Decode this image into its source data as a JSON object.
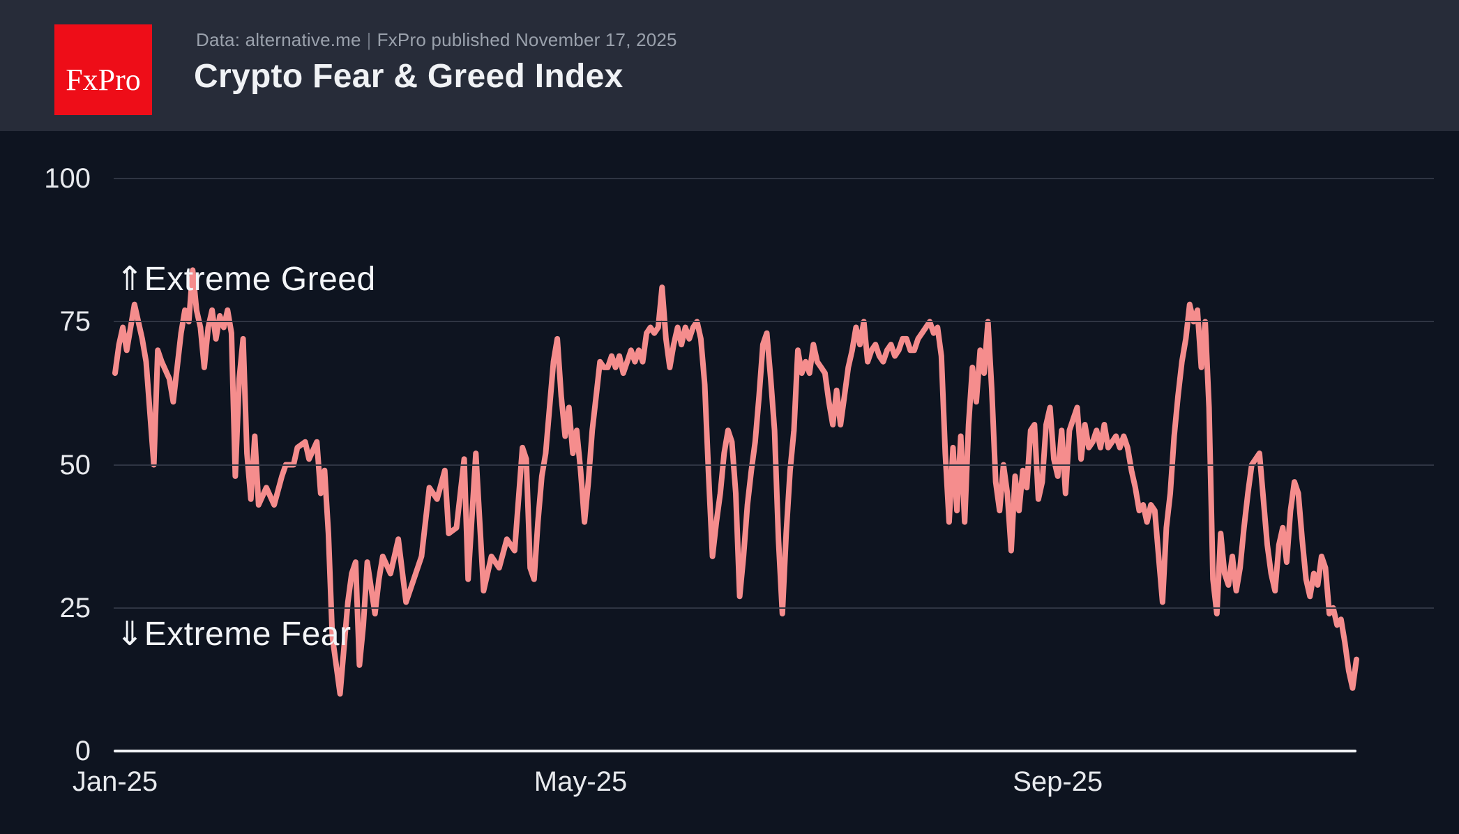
{
  "header": {
    "logo_text": "FxPro",
    "logo_color": "#ee0d18",
    "source_text": "Data: alternative.me",
    "separator": "|",
    "published_text": "FxPro published November 17, 2025",
    "title": "Crypto Fear & Greed Index"
  },
  "chart_data": {
    "type": "line",
    "title": "Crypto Fear & Greed Index",
    "source": "alternative.me",
    "published": "November 17, 2025",
    "legend_position": "none",
    "grid": true,
    "line_color": "#f58d8d",
    "background_color": "#0e1420",
    "y_axis": {
      "ticks": [
        100,
        75,
        50,
        25,
        0
      ],
      "range": [
        0,
        100
      ]
    },
    "x_axis": {
      "tick_labels": [
        "Jan-25",
        "May-25",
        "Sep-25"
      ],
      "tick_days": [
        0,
        120,
        243
      ],
      "domain_days": [
        0,
        320
      ],
      "start": "Jan 1, 2025",
      "end": "Nov 17, 2025"
    },
    "annotations": [
      {
        "text": "⇑Extreme Greed",
        "arrow": "⇑",
        "label": "Extreme Greed",
        "y_value": 82.5
      },
      {
        "text": "⇓Extreme Fear",
        "arrow": "⇓",
        "label": "Extreme Fear",
        "y_value": 20.5
      }
    ],
    "series": [
      {
        "name": "Fear & Greed Index",
        "points": [
          [
            0,
            66
          ],
          [
            1,
            71
          ],
          [
            2,
            74
          ],
          [
            3,
            70
          ],
          [
            4,
            74
          ],
          [
            5,
            78
          ],
          [
            7,
            72
          ],
          [
            8,
            68
          ],
          [
            10,
            50
          ],
          [
            11,
            70
          ],
          [
            12,
            68
          ],
          [
            14,
            65
          ],
          [
            15,
            61
          ],
          [
            16,
            67
          ],
          [
            17,
            73
          ],
          [
            18,
            77
          ],
          [
            19,
            75
          ],
          [
            20,
            84
          ],
          [
            21,
            77
          ],
          [
            22,
            74
          ],
          [
            23,
            67
          ],
          [
            24,
            74
          ],
          [
            25,
            77
          ],
          [
            26,
            72
          ],
          [
            27,
            76
          ],
          [
            28,
            74
          ],
          [
            29,
            77
          ],
          [
            30,
            73
          ],
          [
            31,
            48
          ],
          [
            32,
            65
          ],
          [
            33,
            72
          ],
          [
            34,
            52
          ],
          [
            35,
            44
          ],
          [
            36,
            55
          ],
          [
            37,
            43
          ],
          [
            39,
            46
          ],
          [
            41,
            43
          ],
          [
            43,
            48
          ],
          [
            44,
            50
          ],
          [
            46,
            50
          ],
          [
            47,
            53
          ],
          [
            49,
            54
          ],
          [
            50,
            51
          ],
          [
            52,
            54
          ],
          [
            53,
            45
          ],
          [
            54,
            49
          ],
          [
            55,
            38
          ],
          [
            56,
            20
          ],
          [
            57,
            15
          ],
          [
            58,
            10
          ],
          [
            59,
            18
          ],
          [
            60,
            26
          ],
          [
            61,
            31
          ],
          [
            62,
            33
          ],
          [
            63,
            15
          ],
          [
            64,
            22
          ],
          [
            65,
            33
          ],
          [
            67,
            24
          ],
          [
            68,
            30
          ],
          [
            69,
            34
          ],
          [
            71,
            31
          ],
          [
            73,
            37
          ],
          [
            75,
            26
          ],
          [
            77,
            30
          ],
          [
            79,
            34
          ],
          [
            81,
            46
          ],
          [
            83,
            44
          ],
          [
            85,
            49
          ],
          [
            86,
            38
          ],
          [
            88,
            39
          ],
          [
            90,
            51
          ],
          [
            91,
            30
          ],
          [
            93,
            52
          ],
          [
            95,
            28
          ],
          [
            97,
            34
          ],
          [
            99,
            32
          ],
          [
            101,
            37
          ],
          [
            103,
            35
          ],
          [
            105,
            53
          ],
          [
            106,
            51
          ],
          [
            107,
            32
          ],
          [
            108,
            30
          ],
          [
            109,
            40
          ],
          [
            110,
            48
          ],
          [
            111,
            52
          ],
          [
            112,
            60
          ],
          [
            113,
            68
          ],
          [
            114,
            72
          ],
          [
            115,
            62
          ],
          [
            116,
            55
          ],
          [
            117,
            60
          ],
          [
            118,
            52
          ],
          [
            119,
            56
          ],
          [
            120,
            49
          ],
          [
            121,
            40
          ],
          [
            122,
            47
          ],
          [
            123,
            56
          ],
          [
            124,
            62
          ],
          [
            125,
            68
          ],
          [
            126,
            67
          ],
          [
            127,
            67
          ],
          [
            128,
            69
          ],
          [
            129,
            67
          ],
          [
            130,
            69
          ],
          [
            131,
            66
          ],
          [
            132,
            68
          ],
          [
            133,
            70
          ],
          [
            134,
            68
          ],
          [
            135,
            70
          ],
          [
            136,
            68
          ],
          [
            137,
            73
          ],
          [
            138,
            74
          ],
          [
            139,
            73
          ],
          [
            140,
            74
          ],
          [
            141,
            81
          ],
          [
            142,
            72
          ],
          [
            143,
            67
          ],
          [
            144,
            71
          ],
          [
            145,
            74
          ],
          [
            146,
            71
          ],
          [
            147,
            74
          ],
          [
            148,
            72
          ],
          [
            149,
            74
          ],
          [
            150,
            75
          ],
          [
            151,
            72
          ],
          [
            152,
            64
          ],
          [
            153,
            48
          ],
          [
            154,
            34
          ],
          [
            155,
            40
          ],
          [
            156,
            45
          ],
          [
            157,
            52
          ],
          [
            158,
            56
          ],
          [
            159,
            54
          ],
          [
            160,
            45
          ],
          [
            161,
            27
          ],
          [
            162,
            34
          ],
          [
            163,
            43
          ],
          [
            164,
            49
          ],
          [
            165,
            54
          ],
          [
            166,
            62
          ],
          [
            167,
            71
          ],
          [
            168,
            73
          ],
          [
            169,
            65
          ],
          [
            170,
            56
          ],
          [
            171,
            37
          ],
          [
            172,
            24
          ],
          [
            173,
            38
          ],
          [
            174,
            49
          ],
          [
            175,
            56
          ],
          [
            176,
            70
          ],
          [
            177,
            66
          ],
          [
            178,
            68
          ],
          [
            179,
            66
          ],
          [
            180,
            71
          ],
          [
            181,
            68
          ],
          [
            182,
            67
          ],
          [
            183,
            66
          ],
          [
            184,
            61
          ],
          [
            185,
            57
          ],
          [
            186,
            63
          ],
          [
            187,
            57
          ],
          [
            188,
            62
          ],
          [
            189,
            67
          ],
          [
            190,
            70
          ],
          [
            191,
            74
          ],
          [
            192,
            71
          ],
          [
            193,
            75
          ],
          [
            194,
            68
          ],
          [
            195,
            70
          ],
          [
            196,
            71
          ],
          [
            197,
            69
          ],
          [
            198,
            68
          ],
          [
            199,
            70
          ],
          [
            200,
            71
          ],
          [
            201,
            69
          ],
          [
            202,
            70
          ],
          [
            203,
            72
          ],
          [
            204,
            72
          ],
          [
            205,
            70
          ],
          [
            206,
            70
          ],
          [
            207,
            72
          ],
          [
            208,
            73
          ],
          [
            209,
            74
          ],
          [
            210,
            75
          ],
          [
            211,
            73
          ],
          [
            212,
            74
          ],
          [
            213,
            69
          ],
          [
            214,
            52
          ],
          [
            215,
            40
          ],
          [
            216,
            53
          ],
          [
            217,
            42
          ],
          [
            218,
            55
          ],
          [
            219,
            40
          ],
          [
            220,
            57
          ],
          [
            221,
            67
          ],
          [
            222,
            61
          ],
          [
            223,
            70
          ],
          [
            224,
            66
          ],
          [
            225,
            75
          ],
          [
            226,
            63
          ],
          [
            227,
            47
          ],
          [
            228,
            42
          ],
          [
            229,
            50
          ],
          [
            230,
            45
          ],
          [
            231,
            35
          ],
          [
            232,
            48
          ],
          [
            233,
            42
          ],
          [
            234,
            49
          ],
          [
            235,
            46
          ],
          [
            236,
            56
          ],
          [
            237,
            57
          ],
          [
            238,
            44
          ],
          [
            239,
            47
          ],
          [
            240,
            57
          ],
          [
            241,
            60
          ],
          [
            242,
            51
          ],
          [
            243,
            48
          ],
          [
            244,
            56
          ],
          [
            245,
            45
          ],
          [
            246,
            56
          ],
          [
            247,
            58
          ],
          [
            248,
            60
          ],
          [
            249,
            51
          ],
          [
            250,
            57
          ],
          [
            251,
            53
          ],
          [
            252,
            54
          ],
          [
            253,
            56
          ],
          [
            254,
            53
          ],
          [
            255,
            57
          ],
          [
            256,
            53
          ],
          [
            257,
            54
          ],
          [
            258,
            55
          ],
          [
            259,
            53
          ],
          [
            260,
            55
          ],
          [
            261,
            53
          ],
          [
            262,
            49
          ],
          [
            263,
            46
          ],
          [
            264,
            42
          ],
          [
            265,
            43
          ],
          [
            266,
            40
          ],
          [
            267,
            43
          ],
          [
            268,
            42
          ],
          [
            269,
            34
          ],
          [
            270,
            26
          ],
          [
            271,
            39
          ],
          [
            272,
            45
          ],
          [
            273,
            55
          ],
          [
            274,
            62
          ],
          [
            275,
            68
          ],
          [
            276,
            72
          ],
          [
            277,
            78
          ],
          [
            278,
            75
          ],
          [
            279,
            77
          ],
          [
            280,
            67
          ],
          [
            281,
            75
          ],
          [
            282,
            60
          ],
          [
            283,
            30
          ],
          [
            284,
            24
          ],
          [
            285,
            38
          ],
          [
            286,
            31
          ],
          [
            287,
            29
          ],
          [
            288,
            34
          ],
          [
            289,
            28
          ],
          [
            290,
            32
          ],
          [
            291,
            39
          ],
          [
            292,
            45
          ],
          [
            293,
            50
          ],
          [
            294,
            51
          ],
          [
            295,
            52
          ],
          [
            296,
            44
          ],
          [
            297,
            36
          ],
          [
            298,
            31
          ],
          [
            299,
            28
          ],
          [
            300,
            36
          ],
          [
            301,
            39
          ],
          [
            302,
            33
          ],
          [
            303,
            42
          ],
          [
            304,
            47
          ],
          [
            305,
            45
          ],
          [
            306,
            37
          ],
          [
            307,
            30
          ],
          [
            308,
            27
          ],
          [
            309,
            31
          ],
          [
            310,
            29
          ],
          [
            311,
            34
          ],
          [
            312,
            32
          ],
          [
            313,
            24
          ],
          [
            314,
            25
          ],
          [
            315,
            22
          ],
          [
            316,
            23
          ],
          [
            317,
            19
          ],
          [
            318,
            14
          ],
          [
            319,
            11
          ],
          [
            320,
            16
          ]
        ]
      }
    ]
  }
}
